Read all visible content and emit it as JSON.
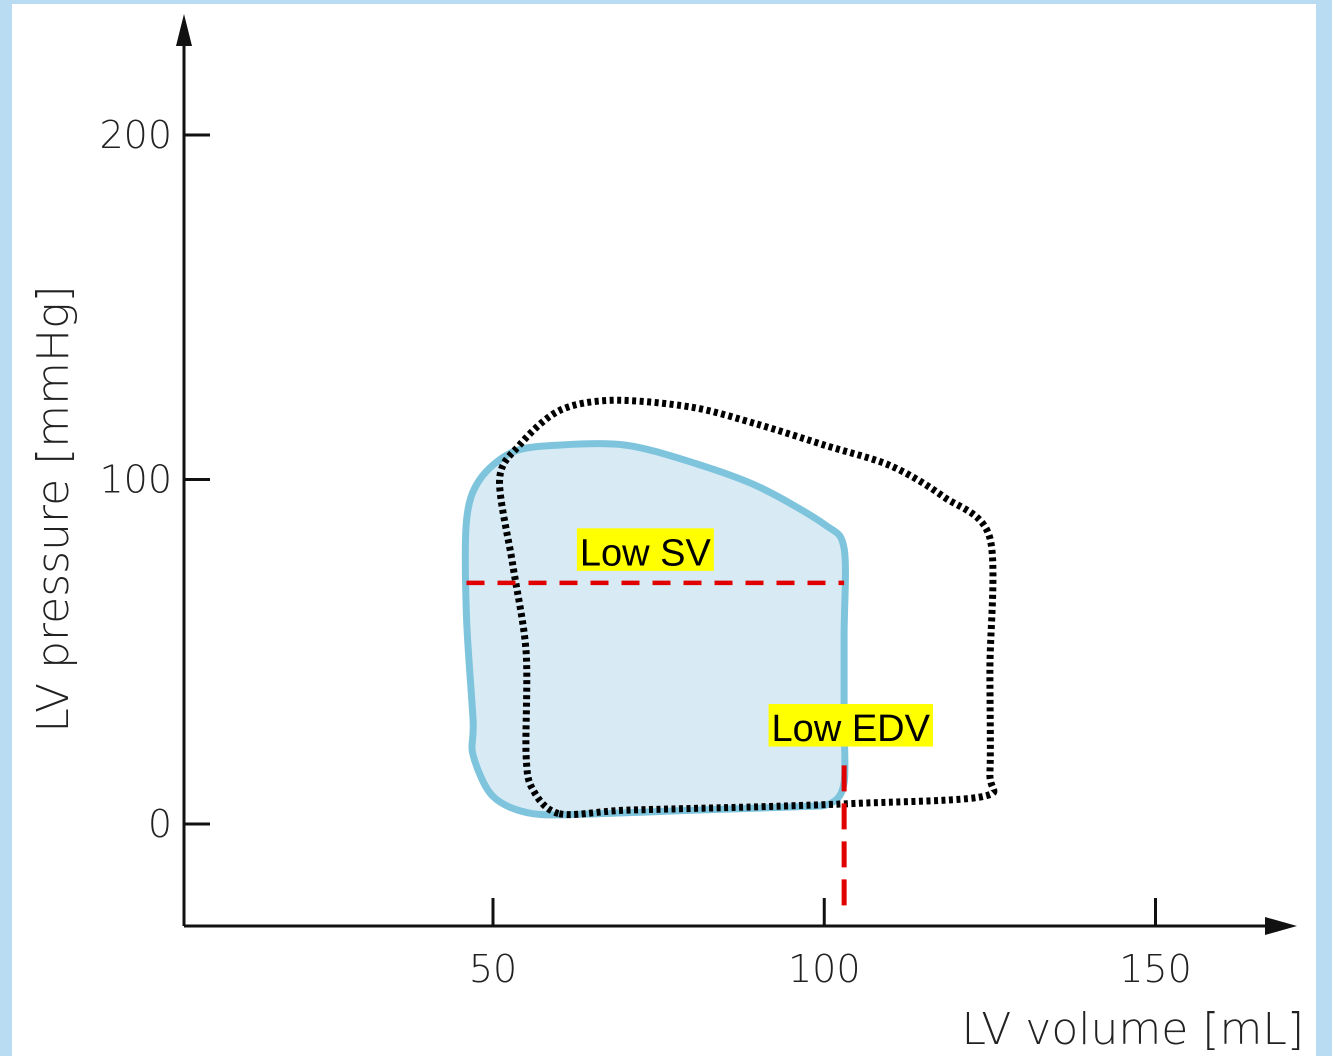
{
  "chart_data": {
    "type": "line",
    "title": "",
    "xlabel": "LV volume [mL]",
    "ylabel": "LV pressure [mmHg]",
    "xlim": [
      3,
      172
    ],
    "ylim": [
      -30,
      235
    ],
    "xticks": [
      50,
      100,
      150
    ],
    "yticks": [
      0,
      100,
      200
    ],
    "xtick_labels": [
      "50",
      "100",
      "150"
    ],
    "ytick_labels": [
      "0",
      "100",
      "200"
    ],
    "grid": false,
    "colors": {
      "reduced_loop_fill": "#d8ebf5",
      "reduced_loop_stroke": "#7ec4dc",
      "baseline_loop_stroke": "#000000",
      "marker_lines": "#e00000",
      "callout_bg": "#ffff00",
      "axis": "#111111"
    },
    "series": [
      {
        "style": "solid-filled",
        "points": [
          [
            56,
            3
          ],
          [
            66,
            3
          ],
          [
            80,
            4
          ],
          [
            96,
            5
          ],
          [
            101,
            6
          ],
          [
            103,
            12
          ],
          [
            103,
            30
          ],
          [
            103,
            55
          ],
          [
            103,
            80
          ],
          [
            100,
            87
          ],
          [
            90,
            98
          ],
          [
            80,
            105
          ],
          [
            70,
            110
          ],
          [
            60,
            110
          ],
          [
            53,
            108
          ],
          [
            48,
            100
          ],
          [
            46,
            88
          ],
          [
            46,
            60
          ],
          [
            47,
            30
          ],
          [
            47,
            20
          ],
          [
            50,
            8
          ]
        ]
      },
      {
        "style": "dotted",
        "points": [
          [
            60,
            3
          ],
          [
            70,
            4
          ],
          [
            90,
            5
          ],
          [
            105,
            6
          ],
          [
            124,
            8
          ],
          [
            125,
            15
          ],
          [
            125,
            45
          ],
          [
            125,
            83
          ],
          [
            118,
            95
          ],
          [
            110,
            104
          ],
          [
            100,
            110
          ],
          [
            90,
            116
          ],
          [
            80,
            121
          ],
          [
            68,
            123
          ],
          [
            60,
            120
          ],
          [
            54,
            110
          ],
          [
            51,
            100
          ],
          [
            53,
            75
          ],
          [
            55,
            50
          ],
          [
            55,
            20
          ],
          [
            56,
            10
          ]
        ]
      }
    ],
    "annotations": [
      {
        "text": "Low SV",
        "x": 73,
        "y": 79
      },
      {
        "text": "Low EDV",
        "x": 104,
        "y": 28
      }
    ],
    "reference_lines": [
      {
        "orientation": "horizontal",
        "y": 70,
        "x_from": 46,
        "x_to": 103
      },
      {
        "orientation": "vertical",
        "x": 103,
        "y_from": -26,
        "y_to": 17
      }
    ]
  }
}
